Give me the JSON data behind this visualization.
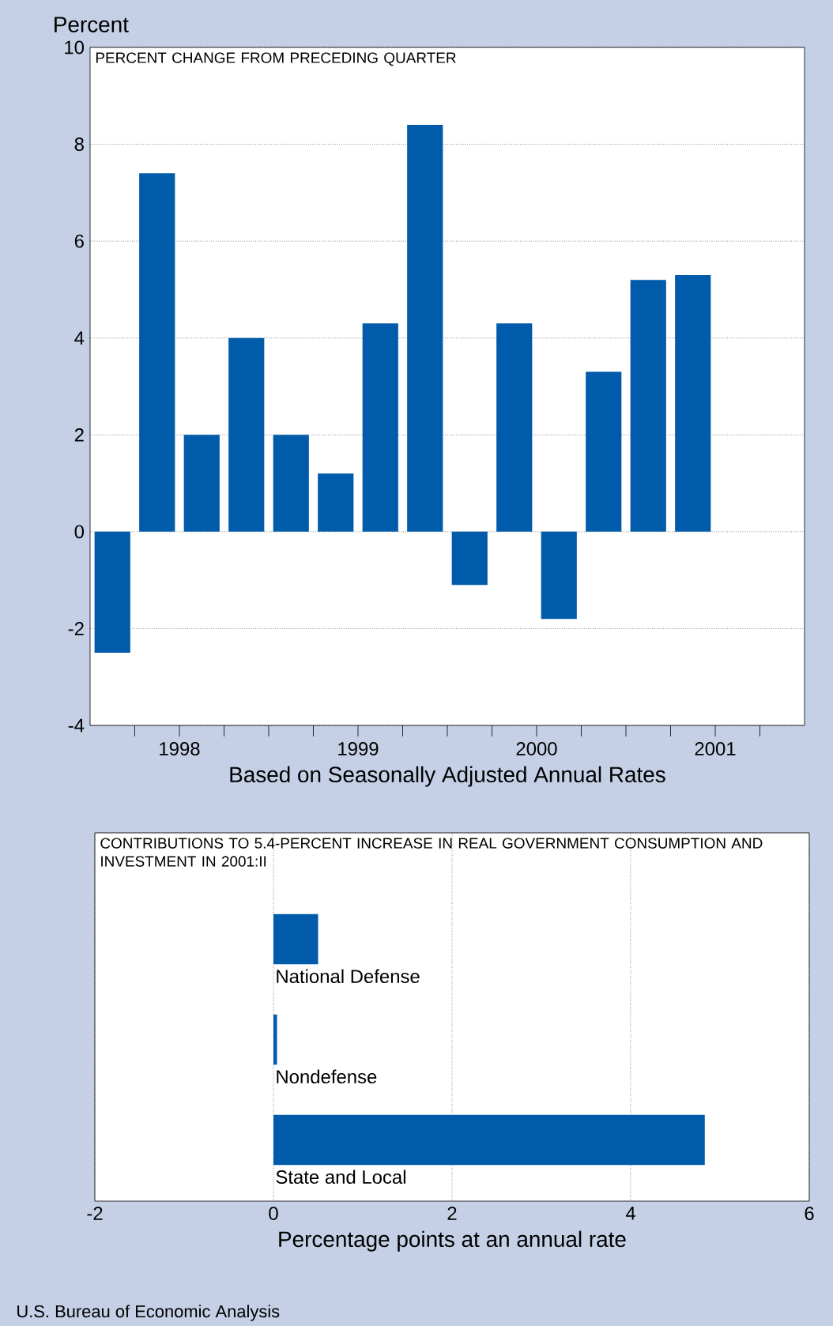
{
  "chart_data": [
    {
      "type": "bar",
      "title": "PERCENT CHANGE FROM PRECEDING QUARTER",
      "xlabel": "Based on Seasonally Adjusted Annual Rates",
      "ylabel": "Percent",
      "x": [
        1998.125,
        1998.375,
        1998.625,
        1998.875,
        1999.125,
        1999.375,
        1999.625,
        1999.875,
        2000.125,
        2000.375,
        2000.625,
        2000.875,
        2001.125,
        2001.375
      ],
      "values": [
        -2.5,
        7.4,
        2.0,
        4.0,
        2.0,
        1.2,
        4.3,
        8.4,
        -1.1,
        4.3,
        -1.8,
        3.3,
        5.2,
        5.3
      ],
      "color": "#005baa",
      "xlim": [
        1998,
        2002
      ],
      "xticks": [
        {
          "value": 1998.25,
          "label": null
        },
        {
          "value": 1998.5,
          "label": "1998"
        },
        {
          "value": 1998.75,
          "label": null
        },
        {
          "value": 1999,
          "label": null
        },
        {
          "value": 1999.25,
          "label": null
        },
        {
          "value": 1999.5,
          "label": "1999"
        },
        {
          "value": 1999.75,
          "label": null
        },
        {
          "value": 2000,
          "label": null
        },
        {
          "value": 2000.25,
          "label": null
        },
        {
          "value": 2000.5,
          "label": "2000"
        },
        {
          "value": 2000.75,
          "label": null
        },
        {
          "value": 2001,
          "label": null
        },
        {
          "value": 2001.25,
          "label": null
        },
        {
          "value": 2001.5,
          "label": "2001"
        },
        {
          "value": 2001.75,
          "label": null
        }
      ],
      "ylim": [
        -4,
        10
      ],
      "yticks": [
        -4,
        -2,
        0,
        2,
        4,
        6,
        8,
        10
      ],
      "grid": "y"
    },
    {
      "type": "bar",
      "orientation": "horizontal",
      "title": "CONTRIBUTIONS TO 5.4-PERCENT INCREASE IN REAL GOVERNMENT CONSUMPTION AND INVESTMENT IN 2001:II",
      "xlabel": "Percentage points at an annual rate",
      "categories": [
        "National Defense",
        "Nondefense",
        "State and Local"
      ],
      "values": [
        0.5,
        0.04,
        4.83
      ],
      "color": "#005baa",
      "xlim": [
        -2,
        6
      ],
      "xticks": [
        -2,
        0,
        2,
        4,
        6
      ],
      "grid": "x",
      "annotations": [
        "U.S. Bureau of Economic Analysis"
      ]
    }
  ]
}
